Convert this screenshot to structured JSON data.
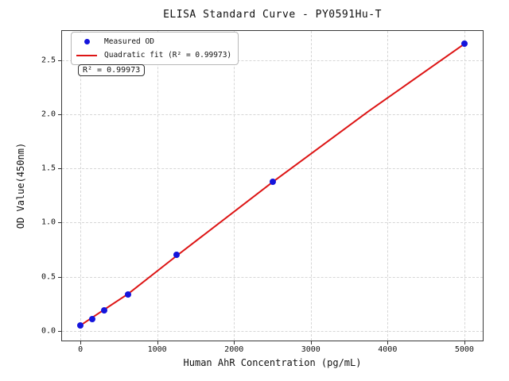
{
  "title": "ELISA Standard Curve - PY0591Hu-T",
  "axes": {
    "xlabel": "Human AhR Concentration (pg/mL)",
    "ylabel": "OD Value(450nm)"
  },
  "legend": {
    "items": [
      {
        "label": "Measured OD",
        "marker": "circle",
        "color": "#1414dc"
      },
      {
        "label": "Quadratic fit (R² = 0.99973)",
        "marker": "line",
        "color": "#dd1515"
      }
    ]
  },
  "annotation": {
    "text": "R² = 0.99973"
  },
  "chart_data": {
    "type": "scatter",
    "title": "ELISA Standard Curve - PY0591Hu-T",
    "xlabel": "Human AhR Concentration (pg/mL)",
    "ylabel": "OD Value(450nm)",
    "xlim": [
      -250,
      5250
    ],
    "ylim": [
      -0.095,
      2.775
    ],
    "x_ticks": [
      0,
      1000,
      2000,
      3000,
      4000,
      5000
    ],
    "x_tick_labels": [
      "0",
      "1000",
      "2000",
      "3000",
      "4000",
      "5000"
    ],
    "y_ticks": [
      0.0,
      0.5,
      1.0,
      1.5,
      2.0,
      2.5
    ],
    "y_tick_labels": [
      "0.0",
      "0.5",
      "1.0",
      "1.5",
      "2.0",
      "2.5"
    ],
    "grid": true,
    "legend_position": "upper left",
    "series": [
      {
        "name": "Measured OD",
        "type": "scatter",
        "color": "#1414dc",
        "points": [
          [
            0,
            0.05
          ],
          [
            156.25,
            0.11
          ],
          [
            312.5,
            0.19
          ],
          [
            625,
            0.34
          ],
          [
            1250,
            0.7
          ],
          [
            2500,
            1.38
          ],
          [
            5000,
            2.65
          ]
        ]
      },
      {
        "name": "Quadratic fit (R² = 0.99973)",
        "type": "line",
        "color": "#dd1515",
        "r_squared": 0.99973,
        "points": [
          [
            0,
            0.052
          ],
          [
            625,
            0.345
          ],
          [
            1250,
            0.692
          ],
          [
            2500,
            1.372
          ],
          [
            3750,
            2.026
          ],
          [
            5000,
            2.648
          ]
        ]
      }
    ]
  }
}
